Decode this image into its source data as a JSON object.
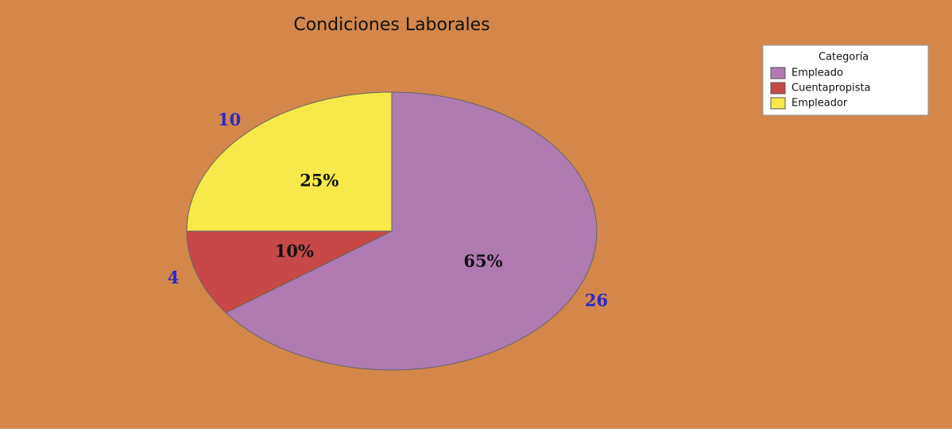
{
  "chart_data": {
    "type": "pie",
    "title": "Condiciones Laborales",
    "legend_title": "Categoría",
    "categories": [
      "Empleado",
      "Cuentapropista",
      "Empleador"
    ],
    "values": [
      26,
      4,
      10
    ],
    "percentages": [
      65,
      10,
      25
    ],
    "percentage_labels": [
      "65%",
      "10%",
      "25%"
    ],
    "colors": [
      "#b07ab0",
      "#c84848",
      "#f8e84a"
    ],
    "legend_position": "upper right"
  }
}
